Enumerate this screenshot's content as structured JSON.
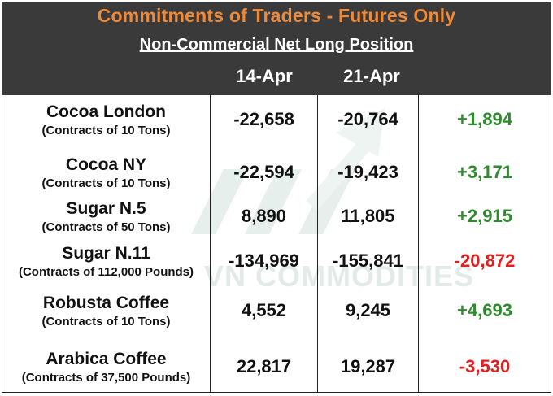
{
  "title": "Commitments of Traders - Futures Only",
  "subtitle": "Non-Commercial Net Long Position",
  "columns": [
    "14-Apr",
    "21-Apr"
  ],
  "watermark": "VN COMMODITIES",
  "colors": {
    "header_bg": "#3a3a3a",
    "title": "#ef8a38",
    "positive": "#2e8b2e",
    "negative": "#e02020"
  },
  "rows": [
    {
      "name": "Cocoa London",
      "unit": "(Contracts of 10 Tons)",
      "v1": "-22,658",
      "v2": "-20,764",
      "change": "+1,894",
      "sign": "pos"
    },
    {
      "name": "Cocoa NY",
      "unit": "(Contracts of 10 Tons)",
      "v1": "-22,594",
      "v2": "-19,423",
      "change": "+3,171",
      "sign": "pos"
    },
    {
      "name": "Sugar N.5",
      "unit": "(Contracts of 50 Tons)",
      "v1": "8,890",
      "v2": "11,805",
      "change": "+2,915",
      "sign": "pos"
    },
    {
      "name": "Sugar N.11",
      "unit": "(Contracts of 112,000 Pounds)",
      "v1": "-134,969",
      "v2": "-155,841",
      "change": "-20,872",
      "sign": "neg"
    },
    {
      "name": "Robusta Coffee",
      "unit": "(Contracts of 10 Tons)",
      "v1": "4,552",
      "v2": "9,245",
      "change": "+4,693",
      "sign": "pos"
    },
    {
      "name": "Arabica Coffee",
      "unit": "(Contracts of 37,500 Pounds)",
      "v1": "22,817",
      "v2": "19,287",
      "change": "-3,530",
      "sign": "neg"
    }
  ]
}
